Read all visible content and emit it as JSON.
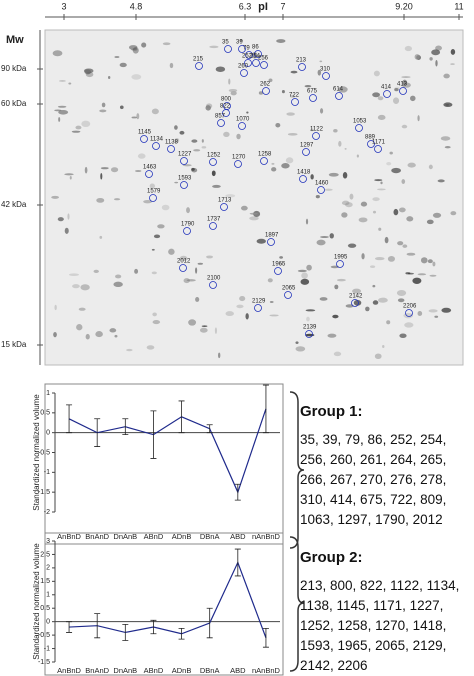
{
  "gel": {
    "pi_label": "pI",
    "mw_label": "Mw",
    "pi_ticks": [
      3,
      4.8,
      6.3,
      7,
      {
        "value": 9.2,
        "label": "9.20"
      },
      11
    ],
    "mw_ticks": [
      {
        "value": 90,
        "label": "90 kDa"
      },
      {
        "value": 60,
        "label": "60 kDa"
      },
      {
        "value": 42,
        "label": "42 kDa"
      },
      {
        "value": 15,
        "label": "15 kDa"
      }
    ],
    "spots": [
      "35",
      "39",
      "79",
      "86",
      "215",
      "252",
      "254",
      "256",
      "260",
      "262",
      "213",
      "310",
      "414",
      "413",
      "614",
      "675",
      "722",
      "800",
      "822",
      "857",
      "1070",
      "1053",
      "1122",
      "889",
      "1171",
      "1145",
      "1134",
      "1138",
      "1227",
      "1252",
      "1258",
      "1270",
      "1297",
      "1418",
      "1460",
      "1463",
      "1579",
      "1593",
      "1713",
      "1737",
      "1790",
      "1897",
      "1965",
      "1995",
      "2012",
      "2065",
      "2100",
      "2129",
      "2139",
      "2142",
      "2206"
    ]
  },
  "chart_data": [
    {
      "type": "line",
      "ylabel": "Standardized normalized volume",
      "categories": [
        "AnBnD",
        "BnAnD",
        "DnAnB",
        "ABnD",
        "ADnB",
        "DBnA",
        "ABD",
        "nAnBnD"
      ],
      "values": [
        0.35,
        0,
        0.15,
        -0.05,
        0.4,
        0.1,
        -1.5,
        0.6
      ],
      "errors": [
        0.35,
        0.35,
        0.2,
        0.6,
        0.4,
        0.1,
        0.2,
        0.6
      ],
      "color": "#1f2a8c",
      "ylim": [
        -2,
        1
      ],
      "yticks": [
        -2,
        -1.5,
        -1,
        -0.5,
        0,
        0.5,
        1
      ]
    },
    {
      "type": "line",
      "ylabel": "Standardized normalized volume",
      "categories": [
        "AnBnD",
        "BnAnD",
        "DnAnB",
        "ABnD",
        "ADnB",
        "DBnA",
        "ABD",
        "nAnBnD"
      ],
      "values": [
        -0.2,
        -0.15,
        -0.4,
        -0.2,
        -0.45,
        -0.05,
        2.2,
        -0.6
      ],
      "errors": [
        0.2,
        0.45,
        0.3,
        0.25,
        0.2,
        0.55,
        0.5,
        0.35
      ],
      "color": "#1f2a8c",
      "ylim": [
        -1.5,
        3
      ],
      "yticks": [
        -1.5,
        -1,
        -0.5,
        0,
        0.5,
        1,
        1.5,
        2,
        2.5,
        3
      ]
    }
  ],
  "groups": [
    {
      "title": "Group 1:",
      "members": "35, 39, 79, 86, 252, 254, 256, 260, 261, 264, 265, 266, 267, 270, 276, 278, 310, 414, 675, 722, 809, 1063, 1297, 1790, 2012"
    },
    {
      "title": "Group 2:",
      "members": "213, 800, 822, 1122, 1134, 1138, 1145, 1171, 1227, 1252, 1258, 1270, 1418, 1593, 1965, 2065, 2129, 2142, 2206"
    }
  ]
}
